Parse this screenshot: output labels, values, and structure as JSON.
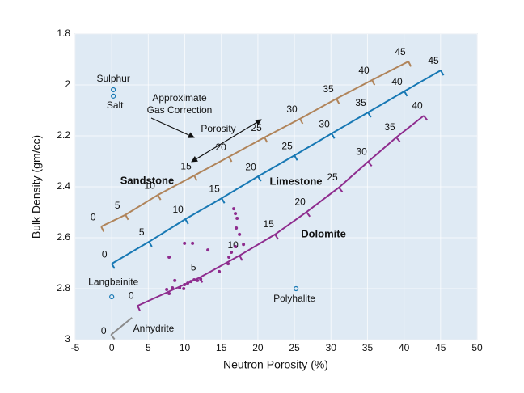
{
  "chart_data": {
    "type": "crossplot",
    "xlabel": "Neutron Porosity (%)",
    "ylabel": "Bulk Density (gm/cc)",
    "xlim": [
      -5,
      50
    ],
    "ylim": [
      1.8,
      3
    ],
    "y_reversed": true,
    "grid": true,
    "xticks": [
      -5,
      0,
      5,
      10,
      15,
      20,
      25,
      30,
      35,
      40,
      45,
      50
    ],
    "yticks": [
      1.8,
      2,
      2.2,
      2.4,
      2.6,
      2.8,
      3
    ],
    "series": [
      {
        "name": "Sandstone",
        "color": "#b0845a",
        "x": [
          -1.44,
          1.88,
          6.31,
          11.28,
          16.04,
          20.91,
          25.77,
          30.75,
          35.62,
          40.6
        ],
        "y": [
          2.556,
          2.51,
          2.432,
          2.356,
          2.282,
          2.206,
          2.133,
          2.054,
          1.981,
          1.908
        ],
        "porosity": [
          0,
          5,
          10,
          15,
          20,
          25,
          30,
          35,
          40,
          45
        ]
      },
      {
        "name": "Limestone",
        "color": "#1778b4",
        "x": [
          0,
          5.09,
          10.07,
          15.04,
          20.02,
          25,
          30.09,
          35.07,
          40.04,
          45.02
        ],
        "y": [
          2.702,
          2.616,
          2.527,
          2.445,
          2.359,
          2.277,
          2.191,
          2.108,
          2.025,
          1.943
        ],
        "porosity": [
          0,
          5,
          10,
          15,
          20,
          25,
          30,
          35,
          40,
          45
        ]
      },
      {
        "name": "Dolomite",
        "color": "#8e2c8e",
        "x": [
          3.54,
          12.06,
          17.48,
          22.35,
          26.66,
          31.08,
          35.07,
          38.94,
          42.7
        ],
        "y": [
          2.867,
          2.756,
          2.67,
          2.587,
          2.499,
          2.403,
          2.302,
          2.206,
          2.121
        ],
        "porosity": [
          0,
          5,
          10,
          15,
          20,
          25,
          30,
          35,
          40
        ]
      },
      {
        "name": "Anhydrite",
        "color": "#8a8a8a",
        "x": [
          -0.1,
          2.77
        ],
        "y": [
          2.981,
          2.914
        ],
        "porosity": [
          0,
          null
        ]
      }
    ],
    "minerals": [
      {
        "name": "Sulphur",
        "x": 0.22,
        "y": 2.019
      },
      {
        "name": "Salt",
        "x": 0.22,
        "y": 2.044
      },
      {
        "name": "Langbeinite",
        "x": 0,
        "y": 2.832
      },
      {
        "name": "Polyhalite",
        "x": 25.22,
        "y": 2.8
      }
    ],
    "mineral_color": "#1778b4",
    "samples": {
      "color": "#8e2c8e",
      "x": [
        7.85,
        9.96,
        11.06,
        13.16,
        16.7,
        16.92,
        17.15,
        17.04,
        17.48,
        18.03,
        16.04,
        16.37,
        16.92,
        15.93,
        14.71,
        8.63,
        7.52,
        7.85,
        8.3,
        9.29,
        9.96,
        10.4,
        10.84,
        11.28,
        11.73,
        12.17,
        9.85
      ],
      "y": [
        2.676,
        2.622,
        2.622,
        2.648,
        2.486,
        2.505,
        2.524,
        2.562,
        2.587,
        2.626,
        2.676,
        2.657,
        2.635,
        2.702,
        2.733,
        2.768,
        2.803,
        2.819,
        2.797,
        2.797,
        2.784,
        2.778,
        2.772,
        2.765,
        2.768,
        2.762,
        2.8
      ]
    },
    "gas_correction_label": [
      "Approximate",
      "Gas Correction"
    ],
    "porosity_arrow_label": "Porosity"
  }
}
